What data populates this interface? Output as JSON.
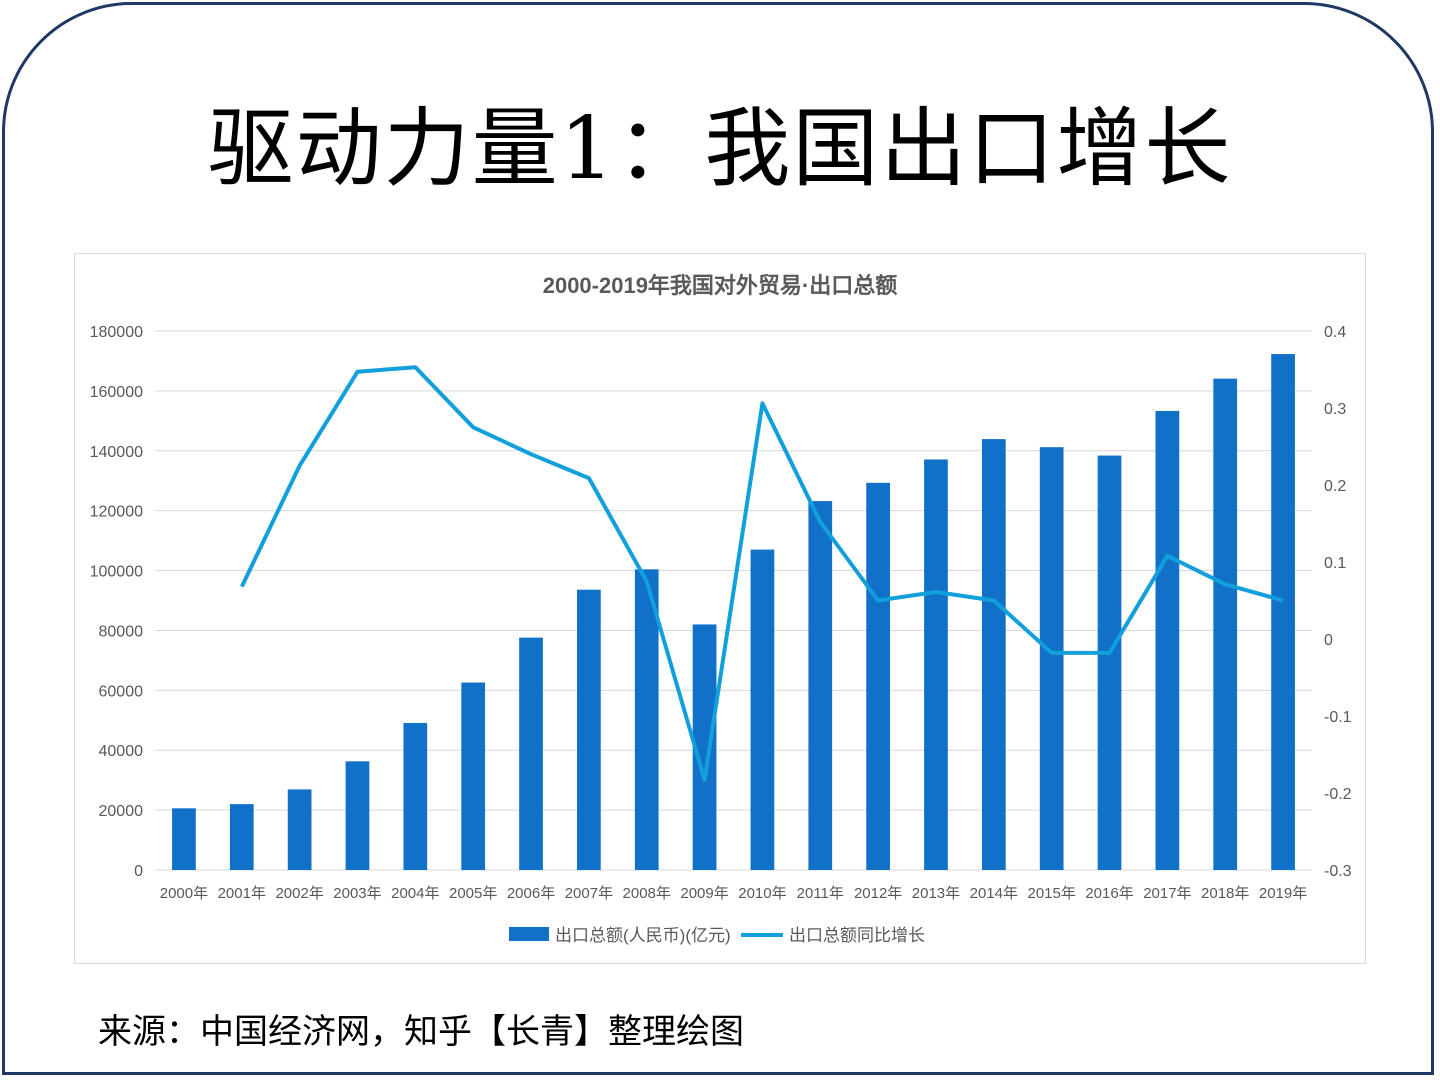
{
  "slide": {
    "title": "驱动力量1：我国出口增长",
    "source": "来源：中国经济网，知乎【长青】整理绘图"
  },
  "colors": {
    "frame": "#1f3864",
    "bar": "#1170c8",
    "line": "#12a0dd",
    "grid": "#d9d9d9",
    "text": "#595959"
  },
  "chart_data": {
    "type": "bar",
    "title": "2000-2019年我国对外贸易·出口总额",
    "categories": [
      "2000年",
      "2001年",
      "2002年",
      "2003年",
      "2004年",
      "2005年",
      "2006年",
      "2007年",
      "2008年",
      "2009年",
      "2010年",
      "2011年",
      "2012年",
      "2013年",
      "2014年",
      "2015年",
      "2016年",
      "2017年",
      "2018年",
      "2019年"
    ],
    "series": [
      {
        "name": "出口总额(人民币)(亿元)",
        "type": "bar",
        "axis": "left",
        "values": [
          20600,
          22000,
          26900,
          36300,
          49100,
          62600,
          77600,
          93600,
          100400,
          82000,
          107000,
          123200,
          129300,
          137100,
          143900,
          141200,
          138400,
          153300,
          164100,
          172300
        ]
      },
      {
        "name": "出口总额同比增长",
        "type": "line",
        "axis": "right",
        "values": [
          null,
          0.068,
          0.225,
          0.347,
          0.353,
          0.275,
          0.24,
          0.209,
          0.075,
          -0.183,
          0.306,
          0.152,
          0.05,
          0.061,
          0.05,
          -0.018,
          -0.018,
          0.108,
          0.071,
          0.05
        ]
      }
    ],
    "y_left": {
      "ylim": [
        0,
        180000
      ],
      "ticks": [
        "0",
        "20000",
        "40000",
        "60000",
        "80000",
        "100000",
        "120000",
        "140000",
        "160000",
        "180000"
      ]
    },
    "y_right": {
      "ylim": [
        -0.3,
        0.4
      ],
      "ticks": [
        "-0.3",
        "-0.2",
        "-0.1",
        "0",
        "0.1",
        "0.2",
        "0.3",
        "0.4"
      ]
    },
    "grid": true,
    "legend_position": "bottom"
  }
}
